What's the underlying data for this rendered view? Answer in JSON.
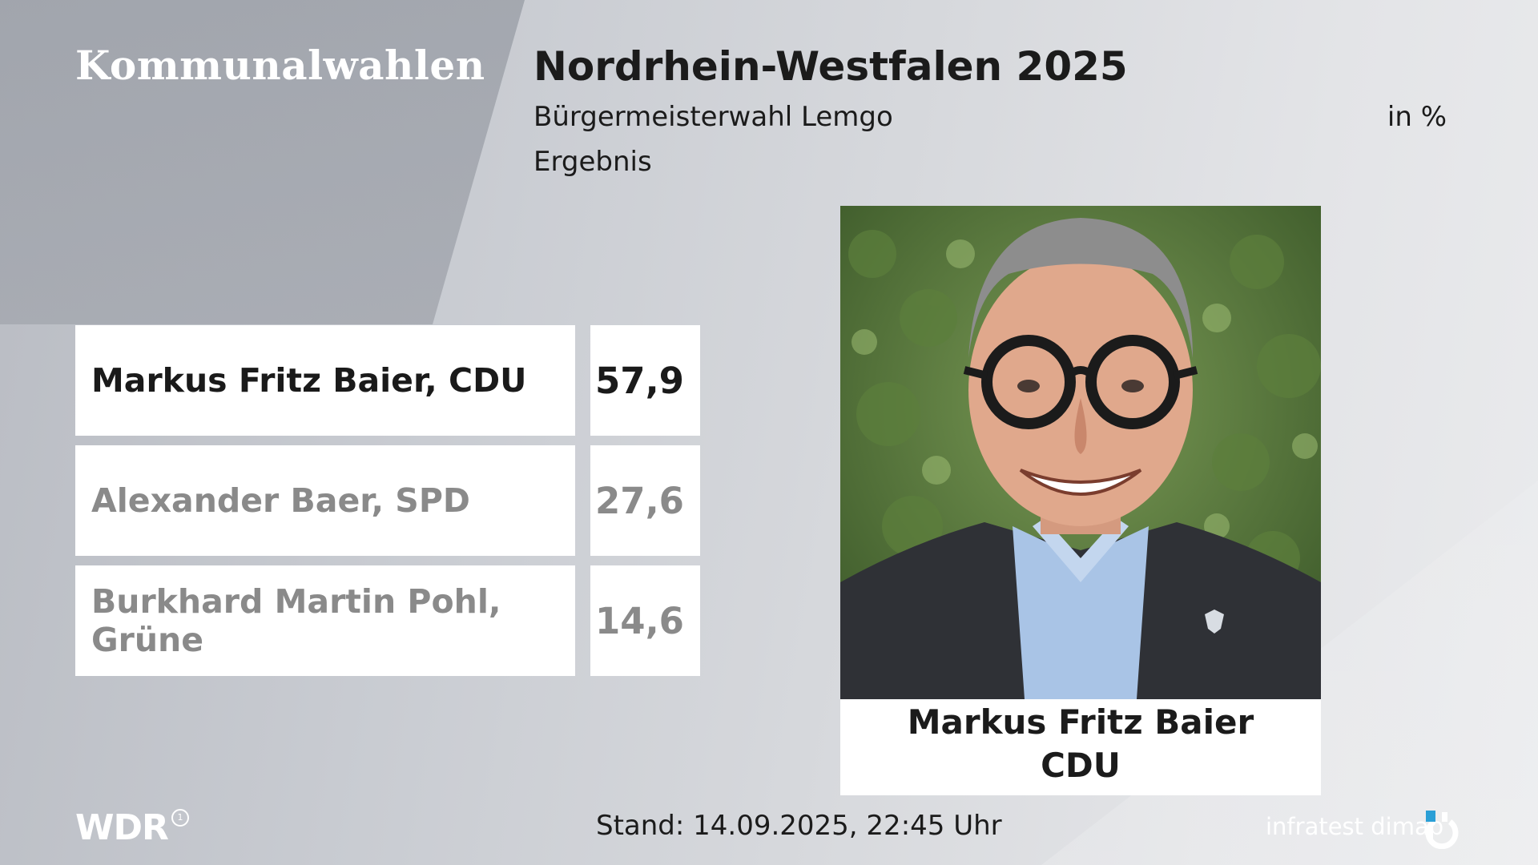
{
  "brand": "Kommunalwahlen",
  "header": {
    "title": "Nordrhein-Westfalen 2025",
    "subtitle": "Bürgermeisterwahl Lemgo",
    "subline": "Ergebnis",
    "unit": "in %"
  },
  "results": [
    {
      "candidate": "Markus Fritz Baier, CDU",
      "value": "57,9",
      "winner": true
    },
    {
      "candidate": "Alexander Baer, SPD",
      "value": "27,6",
      "winner": false
    },
    {
      "candidate": "Burkhard Martin Pohl, Grüne",
      "value": "14,6",
      "winner": false
    }
  ],
  "winner_card": {
    "name": "Markus Fritz Baier",
    "party": "CDU"
  },
  "footer": {
    "broadcaster": "WDR",
    "timestamp": "Stand: 14.09.2025, 22:45 Uhr",
    "institute": "infratest dimap"
  },
  "colors": {
    "winner_text": "#1a1a1a",
    "loser_text": "#8a8a8a",
    "card_bg": "#ffffff"
  }
}
